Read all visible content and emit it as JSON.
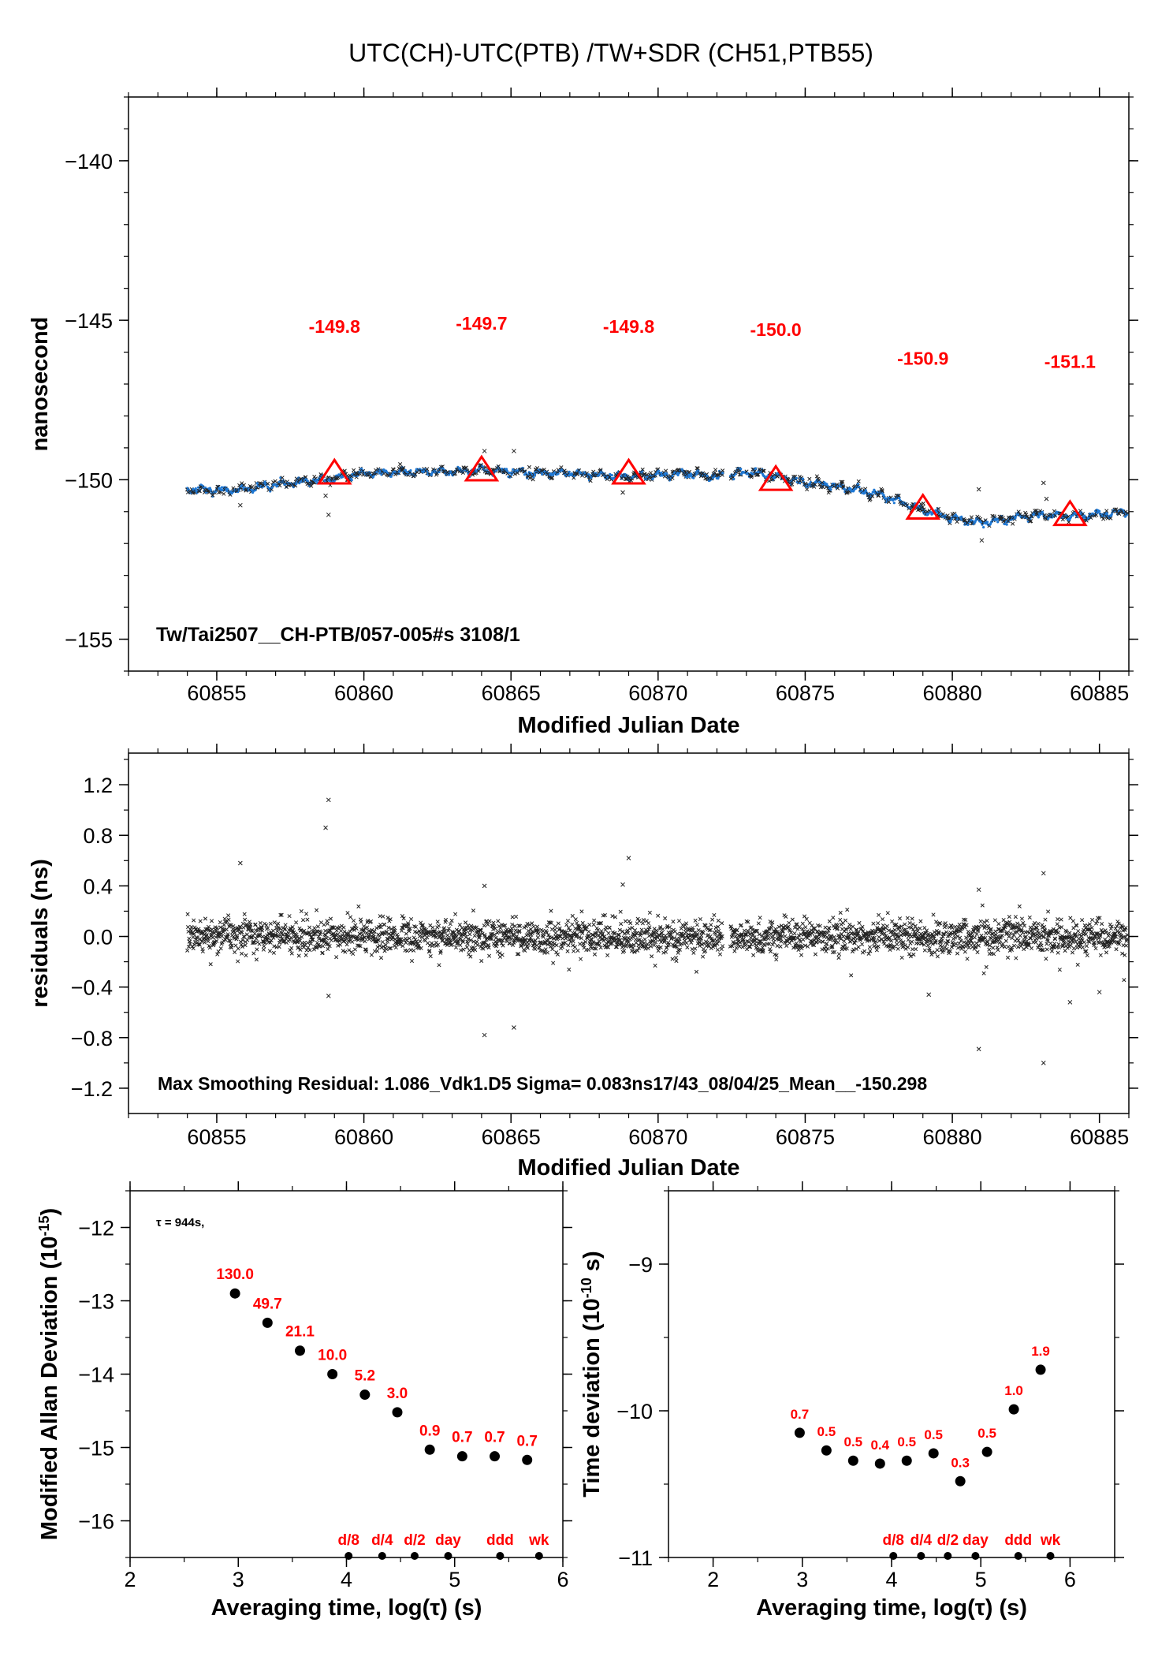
{
  "title": "UTC(CH)-UTC(PTB)  /TW+SDR  (CH51,PTB55)",
  "chart_data": [
    {
      "type": "scatter",
      "id": "top",
      "ylabel": "nanosecond",
      "xlabel": "Modified Julian Date",
      "xlim": [
        60852,
        60886
      ],
      "ylim": [
        -156,
        -138
      ],
      "xticks": [
        60855,
        60860,
        60865,
        60870,
        60875,
        60880,
        60885
      ],
      "yticks": [
        -155,
        -150,
        -145,
        -140
      ],
      "series_trend": {
        "x": [
          60854.0,
          60855.0,
          60856.0,
          60857.0,
          60858.0,
          60859.0,
          60860.0,
          60861.0,
          60862.0,
          60863.0,
          60864.0,
          60865.0,
          60866.0,
          60867.0,
          60868.0,
          60869.0,
          60870.0,
          60871.0,
          60872.0,
          60873.0,
          60874.0,
          60875.0,
          60876.0,
          60877.0,
          60878.0,
          60879.0,
          60880.0,
          60881.0,
          60882.0,
          60883.0,
          60884.0,
          60885.0,
          60886.0
        ],
        "y": [
          -150.3,
          -150.35,
          -150.3,
          -150.15,
          -150.05,
          -149.95,
          -149.8,
          -149.75,
          -149.75,
          -149.75,
          -149.7,
          -149.75,
          -149.8,
          -149.8,
          -149.85,
          -149.9,
          -149.85,
          -149.8,
          -149.9,
          -149.75,
          -149.9,
          -150.1,
          -150.2,
          -150.35,
          -150.6,
          -150.95,
          -151.2,
          -151.35,
          -151.2,
          -151.1,
          -151.15,
          -151.1,
          -151.0
        ]
      },
      "triangles": [
        {
          "x": 60859,
          "y": -149.8,
          "label": "-149.8"
        },
        {
          "x": 60864,
          "y": -149.7,
          "label": "-149.7"
        },
        {
          "x": 60869,
          "y": -149.8,
          "label": "-149.8"
        },
        {
          "x": 60874,
          "y": -150.0,
          "label": "-150.0"
        },
        {
          "x": 60879,
          "y": -150.9,
          "label": "-150.9"
        },
        {
          "x": 60884,
          "y": -151.1,
          "label": "-151.1"
        }
      ],
      "label_y": [
        -145.2,
        -145.1,
        -145.2,
        -145.3,
        -146.2,
        -146.3
      ],
      "outliers": [
        {
          "x": 60855.8,
          "y": -150.8
        },
        {
          "x": 60858.7,
          "y": -150.5
        },
        {
          "x": 60858.8,
          "y": -151.1
        },
        {
          "x": 60864.1,
          "y": -149.1
        },
        {
          "x": 60865.1,
          "y": -149.1
        },
        {
          "x": 60868.8,
          "y": -150.4
        },
        {
          "x": 60880.9,
          "y": -150.3
        },
        {
          "x": 60881.0,
          "y": -151.9
        },
        {
          "x": 60883.1,
          "y": -150.1
        },
        {
          "x": 60883.2,
          "y": -150.6
        }
      ],
      "annotation": "Tw/Tai2507__CH-PTB/057-005#s  3108/1",
      "colors": {
        "points": "#1f78d4",
        "triangles": "#ff0000",
        "labels": "#ff0000"
      }
    },
    {
      "type": "scatter",
      "id": "middle",
      "ylabel": "residuals (ns)",
      "xlabel": "Modified Julian Date",
      "xlim": [
        60852,
        60886
      ],
      "ylim": [
        -1.4,
        1.45
      ],
      "xticks": [
        60855,
        60860,
        60865,
        60870,
        60875,
        60880,
        60885
      ],
      "yticks": [
        -1.2,
        -0.8,
        -0.4,
        0.0,
        0.4,
        0.8,
        1.2
      ],
      "ytick_labels": [
        "−1.2",
        "−0.8",
        "−0.4",
        "0.0",
        "0.4",
        "0.8",
        "1.2"
      ],
      "outliers": [
        {
          "x": 60855.8,
          "y": 0.58
        },
        {
          "x": 60858.7,
          "y": 0.86
        },
        {
          "x": 60858.8,
          "y": 1.08
        },
        {
          "x": 60858.8,
          "y": -0.47
        },
        {
          "x": 60864.1,
          "y": 0.4
        },
        {
          "x": 60864.1,
          "y": -0.78
        },
        {
          "x": 60865.1,
          "y": -0.72
        },
        {
          "x": 60868.8,
          "y": 0.41
        },
        {
          "x": 60869.0,
          "y": 0.62
        },
        {
          "x": 60879.2,
          "y": -0.46
        },
        {
          "x": 60880.9,
          "y": -0.89
        },
        {
          "x": 60880.9,
          "y": 0.37
        },
        {
          "x": 60883.1,
          "y": 0.5
        },
        {
          "x": 60883.1,
          "y": -1.0
        },
        {
          "x": 60884.0,
          "y": -0.52
        },
        {
          "x": 60885.0,
          "y": -0.44
        }
      ],
      "annotation": "Max Smoothing Residual: 1.086_Vdk1.D5  Sigma= 0.083ns17/43_08/04/25_Mean__-150.298"
    },
    {
      "type": "scatter",
      "id": "mdev",
      "ylabel": "Modified Allan Deviation (10",
      "ylabel_exp": "-15",
      "ylabel_end": ")",
      "xlabel": "Averaging time, log(τ) (s)",
      "xlim": [
        2,
        6
      ],
      "ylim": [
        -16.5,
        -11.5
      ],
      "xticks": [
        2,
        3,
        4,
        5,
        6
      ],
      "yticks": [
        -16,
        -15,
        -14,
        -13,
        -12
      ],
      "x": [
        2.97,
        3.27,
        3.57,
        3.87,
        4.17,
        4.47,
        4.77,
        5.07,
        5.37,
        5.67
      ],
      "y": [
        -12.9,
        -13.3,
        -13.68,
        -14.0,
        -14.28,
        -14.52,
        -15.03,
        -15.12,
        -15.12,
        -15.17
      ],
      "value_labels": [
        "130.0",
        "49.7",
        "21.1",
        "10.0",
        "5.2",
        "3.0",
        "0.9",
        "0.7",
        "0.7",
        "0.7"
      ],
      "marks": [
        {
          "x": 4.02,
          "label": "d/8"
        },
        {
          "x": 4.33,
          "label": "d/4"
        },
        {
          "x": 4.63,
          "label": "d/2"
        },
        {
          "x": 4.94,
          "label": "day"
        },
        {
          "x": 5.42,
          "label": "ddd"
        },
        {
          "x": 5.78,
          "label": "wk"
        }
      ],
      "note": "τ = 944s,"
    },
    {
      "type": "scatter",
      "id": "tdev",
      "ylabel": "Time deviation (10",
      "ylabel_exp": "-10",
      "ylabel_end": " s)",
      "xlabel": "Averaging time, log(τ) (s)",
      "xlim": [
        1.5,
        6.5
      ],
      "ylim": [
        -11,
        -8.5
      ],
      "xticks": [
        2,
        3,
        4,
        5,
        6
      ],
      "yticks": [
        -11,
        -10,
        -9
      ],
      "x": [
        2.97,
        3.27,
        3.57,
        3.87,
        4.17,
        4.47,
        4.77,
        5.07,
        5.37,
        5.67
      ],
      "y": [
        -10.15,
        -10.27,
        -10.34,
        -10.36,
        -10.34,
        -10.29,
        -10.48,
        -10.28,
        -9.99,
        -9.72
      ],
      "value_labels": [
        "0.7",
        "0.5",
        "0.5",
        "0.4",
        "0.5",
        "0.5",
        "0.3",
        "0.5",
        "1.0",
        "1.9"
      ],
      "marks": [
        {
          "x": 4.02,
          "label": "d/8"
        },
        {
          "x": 4.33,
          "label": "d/4"
        },
        {
          "x": 4.63,
          "label": "d/2"
        },
        {
          "x": 4.94,
          "label": "day"
        },
        {
          "x": 5.42,
          "label": "ddd"
        },
        {
          "x": 5.78,
          "label": "wk"
        }
      ]
    }
  ]
}
